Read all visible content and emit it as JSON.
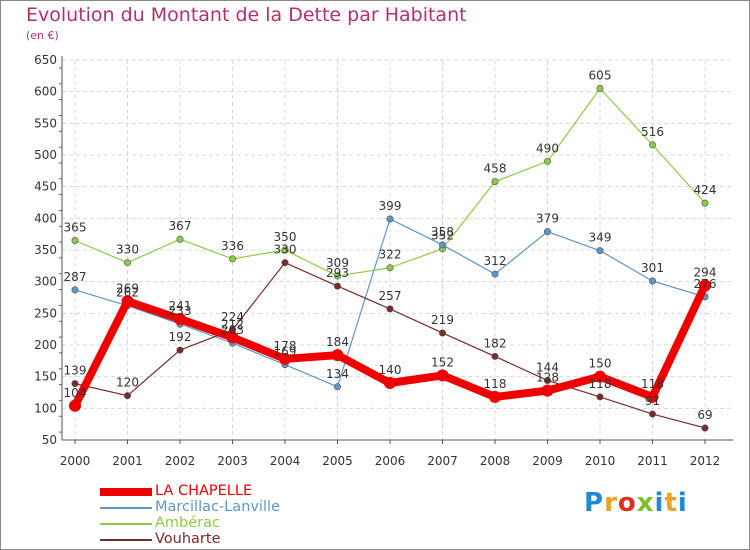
{
  "title": "Evolution du Montant de la Dette par Habitant",
  "subtitle": "(en €)",
  "logo": {
    "text": "Proxiti",
    "colors": [
      "#1e8ad6",
      "#f0a020",
      "#e0301e",
      "#7cbf2a",
      "#1e8ad6",
      "#f0a020",
      "#1e8ad6"
    ]
  },
  "chart_data": {
    "type": "line",
    "x": [
      "2000",
      "2001",
      "2002",
      "2003",
      "2004",
      "2005",
      "2006",
      "2007",
      "2008",
      "2009",
      "2010",
      "2011",
      "2012"
    ],
    "ylim": [
      50,
      650
    ],
    "yticks": [
      50,
      100,
      150,
      200,
      250,
      300,
      350,
      400,
      450,
      500,
      550,
      600,
      650
    ],
    "grid": true,
    "legend": "bottom-left",
    "series": [
      {
        "name": "Ambérac",
        "color": "#8ccc44",
        "width": 1.2,
        "values": [
          365,
          330,
          367,
          336,
          350,
          309,
          322,
          352,
          458,
          490,
          605,
          516,
          424
        ],
        "labels": [
          "365",
          "330",
          "367",
          "336",
          "350",
          "309",
          "322",
          "352",
          "458",
          "490",
          "605",
          "516",
          "424"
        ]
      },
      {
        "name": "Marcillac-Lanville",
        "color": "#5f96c8",
        "width": 1.2,
        "values": [
          287,
          262,
          233,
          203,
          169,
          134,
          399,
          358,
          312,
          379,
          349,
          301,
          276
        ],
        "labels": [
          "287",
          "262",
          "233",
          "203",
          "169",
          "134",
          "399",
          "358",
          "312",
          "379",
          "349",
          "301",
          "276"
        ]
      },
      {
        "name": "Vouharte",
        "color": "#7a2a2a",
        "width": 1.2,
        "values": [
          139,
          120,
          192,
          224,
          330,
          293,
          257,
          219,
          182,
          144,
          118,
          91,
          69
        ],
        "labels": [
          "139",
          "120",
          "192",
          "224",
          "330",
          "293",
          "257",
          "219",
          "182",
          "144",
          "118",
          "91",
          "69"
        ]
      },
      {
        "name": "LA CHAPELLE",
        "color": "#ee0000",
        "width": 8,
        "values": [
          104,
          269,
          241,
          212,
          178,
          184,
          140,
          152,
          118,
          128,
          150,
          118,
          294
        ],
        "labels": [
          "104",
          "269",
          "241",
          "212",
          "178",
          "184",
          "140",
          "152",
          "118",
          "128",
          "150",
          "118",
          "294"
        ]
      }
    ],
    "legend_order": [
      {
        "name": "LA CHAPELLE",
        "color": "#ee0000",
        "width": 8
      },
      {
        "name": "Marcillac-Lanville",
        "color": "#5f96c8",
        "width": 2
      },
      {
        "name": "Ambérac",
        "color": "#8ccc44",
        "width": 2
      },
      {
        "name": "Vouharte",
        "color": "#7a2a2a",
        "width": 2
      }
    ]
  }
}
